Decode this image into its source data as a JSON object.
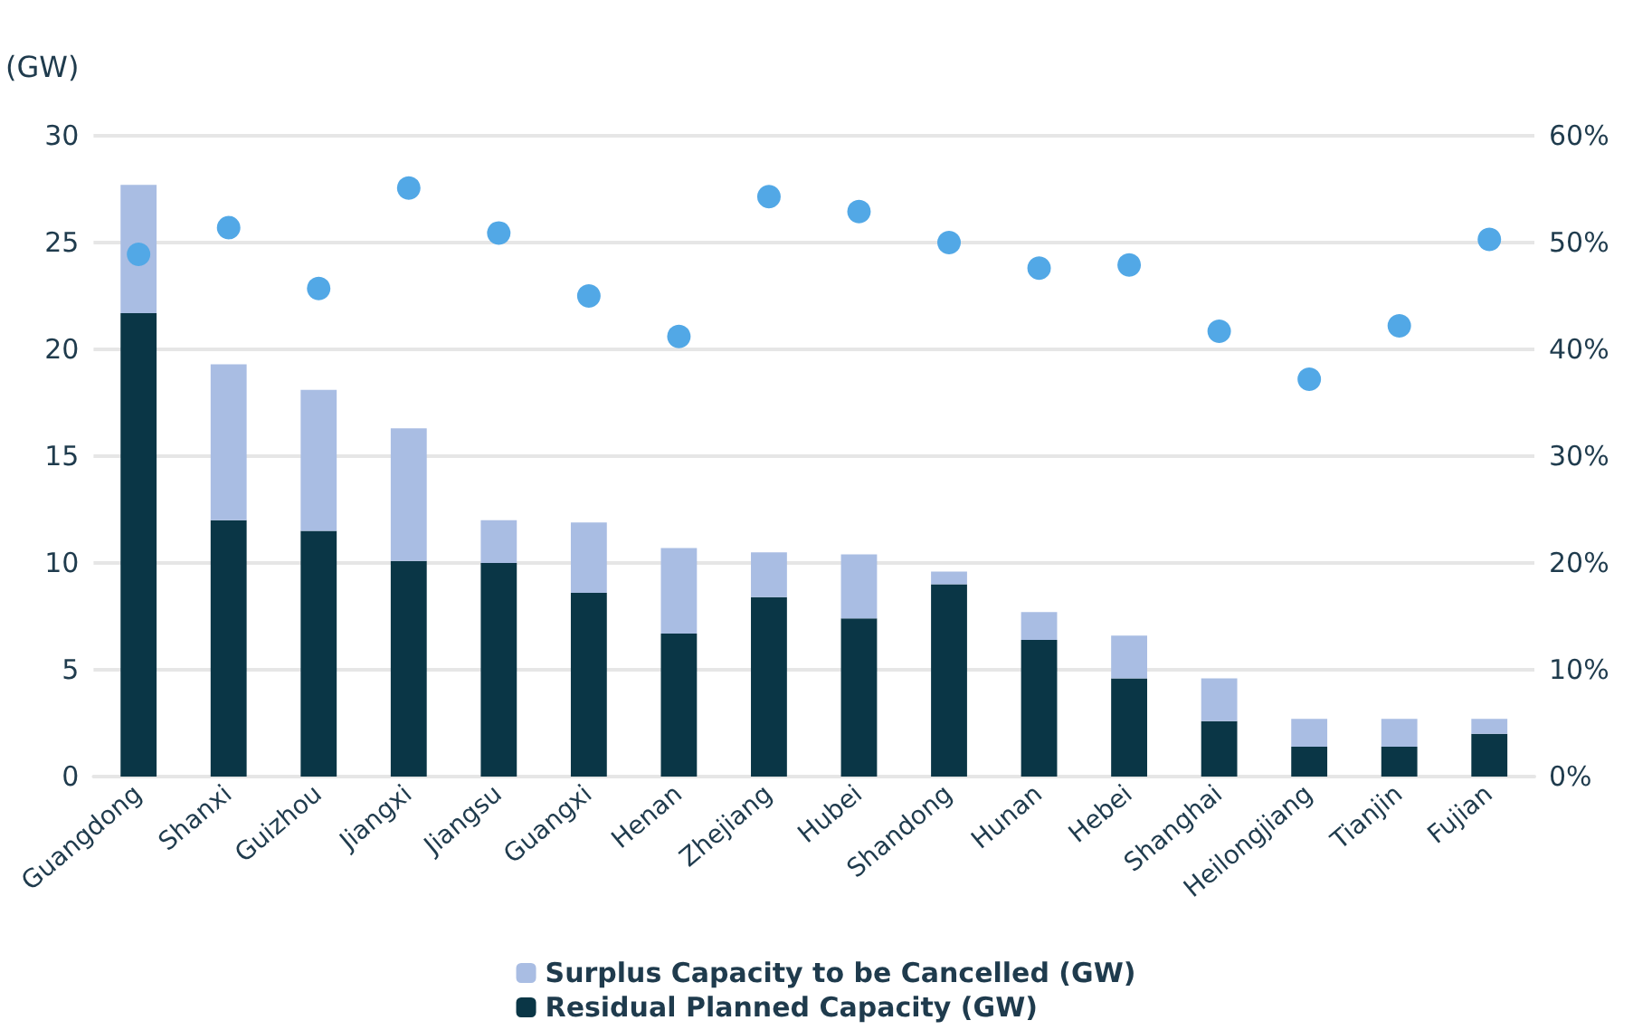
{
  "chart_data": {
    "type": "bar",
    "ylabel": "(GW)",
    "stacked": true,
    "categories": [
      "Guangdong",
      "Shanxi",
      "Guizhou",
      "Jiangxi",
      "Jiangsu",
      "Guangxi",
      "Henan",
      "Zhejiang",
      "Hubei",
      "Shandong",
      "Hunan",
      "Hebei",
      "Shanghai",
      "Heilongjiang",
      "Tianjin",
      "Fujian"
    ],
    "series": [
      {
        "name": "Residual Planned Capacity (GW)",
        "color": "#0a3646",
        "values": [
          21.7,
          12.0,
          11.5,
          10.1,
          10.0,
          8.6,
          6.7,
          8.4,
          7.4,
          9.0,
          6.4,
          4.6,
          2.6,
          1.4,
          1.4,
          2.0
        ]
      },
      {
        "name": "Surplus Capacity to be Cancelled (GW)",
        "color": "#a9bde3",
        "values": [
          6.0,
          7.3,
          6.6,
          6.2,
          2.0,
          3.3,
          4.0,
          2.1,
          3.0,
          0.6,
          1.3,
          2.0,
          2.0,
          1.3,
          1.3,
          0.7
        ]
      },
      {
        "type": "scatter",
        "axis": "y2",
        "color": "#52a8e6",
        "values": [
          48.9,
          51.4,
          45.7,
          55.1,
          50.9,
          45.0,
          41.2,
          54.3,
          52.9,
          50.0,
          47.6,
          47.9,
          41.7,
          37.2,
          42.2,
          50.3
        ]
      }
    ],
    "ylim": [
      0,
      30
    ],
    "yticks": [
      0,
      5,
      10,
      15,
      20,
      25,
      30
    ],
    "y2lim": [
      0,
      60
    ],
    "y2ticks": [
      {
        "value": 0,
        "label": "0%"
      },
      {
        "value": 10,
        "label": "10%"
      },
      {
        "value": 20,
        "label": "20%"
      },
      {
        "value": 30,
        "label": "30%"
      },
      {
        "value": 40,
        "label": "40%"
      },
      {
        "value": 50,
        "label": "50%"
      },
      {
        "value": 60,
        "label": "60%"
      }
    ],
    "grid": "y",
    "legend": "bottom",
    "marker": "circle"
  }
}
